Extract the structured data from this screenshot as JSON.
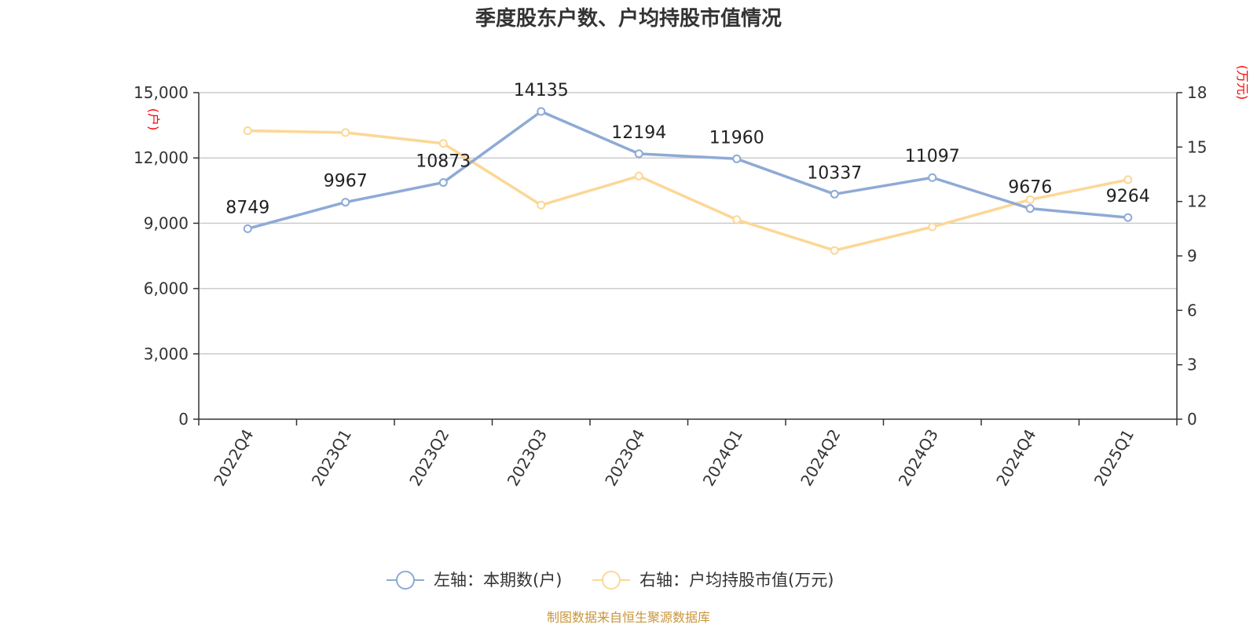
{
  "colors": {
    "series1": "#8eaad6",
    "series2": "#fcd796",
    "unit": "#ff0000",
    "source": "#c8963c",
    "grid": "#cccccc",
    "axis": "#333333"
  },
  "chart_data": {
    "type": "line",
    "title": "季度股东户数、户均持股市值情况",
    "categories": [
      "2022Q4",
      "2023Q1",
      "2023Q2",
      "2023Q3",
      "2023Q4",
      "2024Q1",
      "2024Q2",
      "2024Q3",
      "2024Q4",
      "2025Q1"
    ],
    "y_left": {
      "unit": "(户)",
      "range": [
        0,
        15000
      ],
      "ticks": [
        0,
        3000,
        6000,
        9000,
        12000,
        15000
      ],
      "tick_labels": [
        "0",
        "3,000",
        "6,000",
        "9,000",
        "12,000",
        "15,000"
      ]
    },
    "y_right": {
      "unit": "(万元)",
      "range": [
        0,
        18
      ],
      "ticks": [
        0,
        3,
        6,
        9,
        12,
        15,
        18
      ],
      "tick_labels": [
        "0",
        "3",
        "6",
        "9",
        "12",
        "15",
        "18"
      ]
    },
    "grid": true,
    "legend_position": "bottom",
    "series": [
      {
        "name": "左轴：本期数(户)",
        "axis": "left",
        "values": [
          8749,
          9967,
          10873,
          14135,
          12194,
          11960,
          10337,
          11097,
          9676,
          9264
        ],
        "labels": [
          "8749",
          "9967",
          "10873",
          "14135",
          "12194",
          "11960",
          "10337",
          "11097",
          "9676",
          "9264"
        ]
      },
      {
        "name": "右轴：户均持股市值(万元)",
        "axis": "right",
        "values": [
          15.9,
          15.8,
          15.2,
          11.8,
          13.4,
          11.0,
          9.3,
          10.6,
          12.1,
          13.2
        ]
      }
    ],
    "source": "制图数据来自恒生聚源数据库"
  }
}
